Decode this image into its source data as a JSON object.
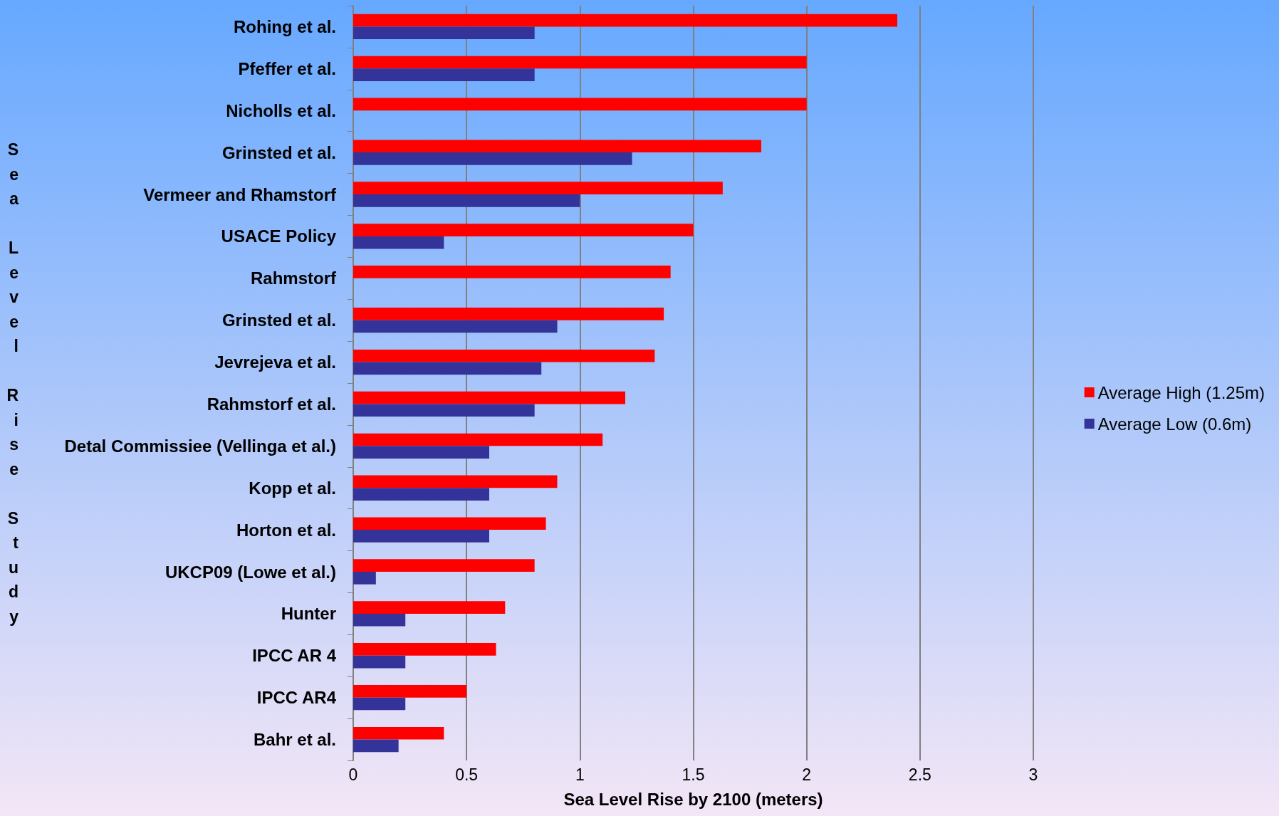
{
  "chart_data": {
    "type": "bar",
    "orientation": "horizontal",
    "xlabel": "Sea Level Rise by 2100 (meters)",
    "ylabel": "Sea Level Rise Study",
    "categories": [
      "Rohing et al.",
      "Pfeffer et al.",
      "Nicholls et al.",
      "Grinsted et al.",
      "Vermeer and Rhamstorf",
      "USACE Policy",
      "Rahmstorf",
      "Grinsted et al.",
      "Jevrejeva et al.",
      "Rahmstorf et al.",
      "Detal Commissiee (Vellinga et al.)",
      "Kopp et al.",
      "Horton et al.",
      "UKCP09 (Lowe et al.)",
      "Hunter",
      "IPCC AR 4",
      "IPCC AR4",
      "Bahr et al."
    ],
    "series": [
      {
        "name": "Average High (1.25m)",
        "color": "#ff0000",
        "values": [
          2.4,
          2.0,
          2.0,
          1.8,
          1.63,
          1.5,
          1.4,
          1.37,
          1.33,
          1.2,
          1.1,
          0.9,
          0.85,
          0.8,
          0.67,
          0.63,
          0.5,
          0.4
        ]
      },
      {
        "name": "Average Low (0.6m)",
        "color": "#333399",
        "values": [
          0.8,
          0.8,
          null,
          1.23,
          1.0,
          0.4,
          null,
          0.9,
          0.83,
          0.8,
          0.6,
          0.6,
          0.6,
          0.1,
          0.23,
          0.23,
          0.23,
          0.2
        ]
      }
    ],
    "xlim": [
      0,
      3
    ],
    "xticks": [
      0,
      0.5,
      1,
      1.5,
      2,
      2.5,
      3
    ],
    "grid": "x",
    "legend": "right"
  }
}
